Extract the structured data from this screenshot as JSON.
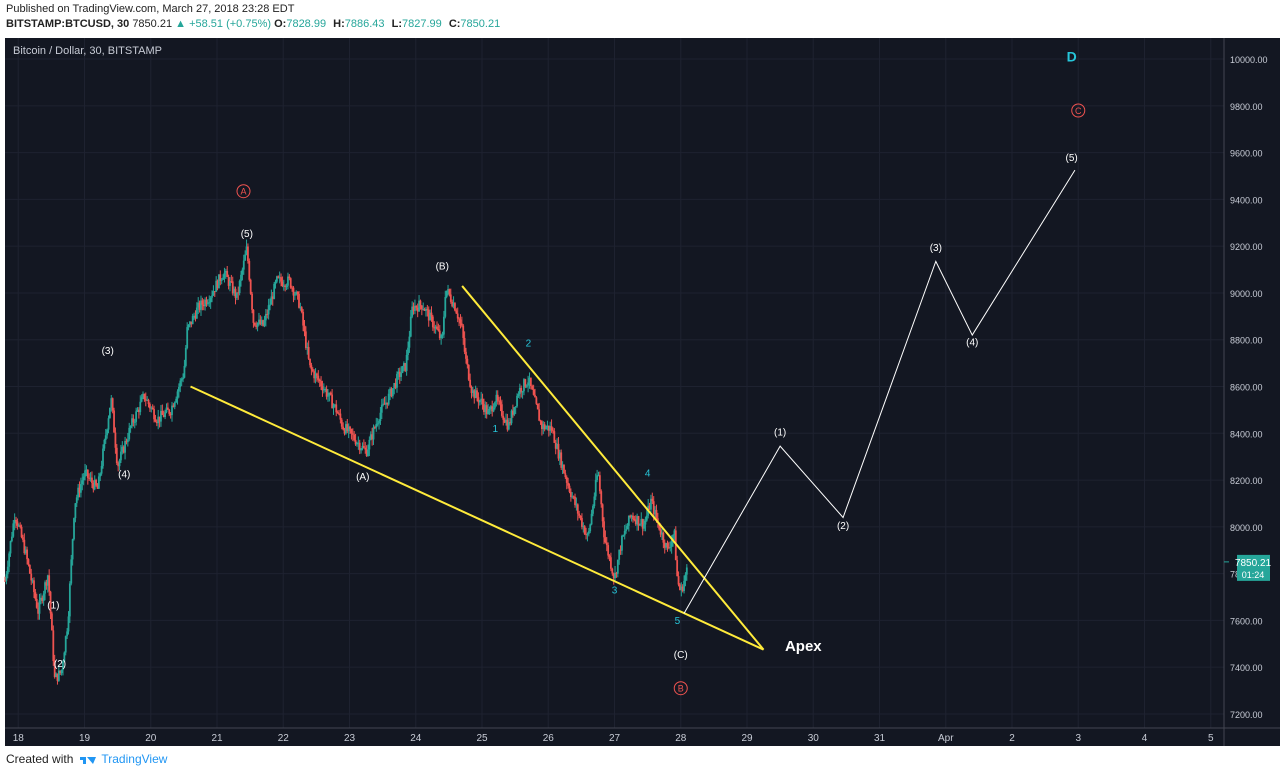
{
  "published": "Published on TradingView.com, March 27, 2018 23:28 EDT",
  "quote": {
    "symbol": "BITSTAMP:BTCUSD, 30",
    "last": "7850.21",
    "change": "▲ +58.51 (+0.75%)",
    "o_label": "O:",
    "o": "7828.99",
    "h_label": "H:",
    "h": "7886.43",
    "l_label": "L:",
    "l": "7827.99",
    "c_label": "C:",
    "c": "7850.21"
  },
  "chart_title": "Bitcoin / Dollar, 30, BITSTAMP",
  "footer": {
    "created_with": "Created with",
    "brand": "TradingView"
  },
  "price_tag": {
    "price": "7850.21",
    "countdown": "01:24"
  },
  "colors": {
    "background": "#131722",
    "up": "#26a69a",
    "down": "#ef5350",
    "trendline": "#ffeb3b",
    "projection": "#ffffff",
    "cyan_label": "#26c6da",
    "red_circle": "#ef5350"
  },
  "chart_data": {
    "type": "candlestick",
    "title": "Bitcoin / Dollar, 30, BITSTAMP",
    "x_ticks": [
      "18",
      "19",
      "20",
      "21",
      "22",
      "23",
      "24",
      "25",
      "26",
      "27",
      "28",
      "29",
      "30",
      "31",
      "Apr",
      "2",
      "3",
      "4",
      "5"
    ],
    "y_ticks": [
      "7200.00",
      "7400.00",
      "7600.00",
      "7800.00",
      "8000.00",
      "8200.00",
      "8400.00",
      "8600.00",
      "8800.00",
      "9000.00",
      "9200.00",
      "9400.00",
      "9600.00",
      "9800.00",
      "10000.00"
    ],
    "ylim": [
      7140,
      10090
    ],
    "xlim_days": [
      17.8,
      36.2
    ],
    "price_path": [
      [
        17.8,
        7770
      ],
      [
        17.95,
        8060
      ],
      [
        18.1,
        7900
      ],
      [
        18.3,
        7640
      ],
      [
        18.45,
        7800
      ],
      [
        18.55,
        7350
      ],
      [
        18.65,
        7380
      ],
      [
        18.75,
        7600
      ],
      [
        18.85,
        8100
      ],
      [
        19.0,
        8230
      ],
      [
        19.2,
        8160
      ],
      [
        19.4,
        8550
      ],
      [
        19.5,
        8260
      ],
      [
        19.7,
        8430
      ],
      [
        19.9,
        8560
      ],
      [
        20.1,
        8460
      ],
      [
        20.3,
        8500
      ],
      [
        20.5,
        8660
      ],
      [
        20.55,
        8840
      ],
      [
        20.7,
        8930
      ],
      [
        20.9,
        8990
      ],
      [
        21.1,
        9090
      ],
      [
        21.3,
        8980
      ],
      [
        21.45,
        9190
      ],
      [
        21.55,
        8880
      ],
      [
        21.7,
        8860
      ],
      [
        21.9,
        9050
      ],
      [
        22.1,
        9050
      ],
      [
        22.25,
        8950
      ],
      [
        22.4,
        8680
      ],
      [
        22.6,
        8600
      ],
      [
        22.8,
        8500
      ],
      [
        22.9,
        8430
      ],
      [
        23.1,
        8370
      ],
      [
        23.25,
        8320
      ],
      [
        23.45,
        8480
      ],
      [
        23.6,
        8560
      ],
      [
        23.75,
        8650
      ],
      [
        23.85,
        8690
      ],
      [
        23.95,
        8940
      ],
      [
        24.1,
        8950
      ],
      [
        24.3,
        8850
      ],
      [
        24.4,
        8790
      ],
      [
        24.45,
        9020
      ],
      [
        24.6,
        8940
      ],
      [
        24.7,
        8840
      ],
      [
        24.75,
        8720
      ],
      [
        24.85,
        8580
      ],
      [
        25.0,
        8530
      ],
      [
        25.1,
        8480
      ],
      [
        25.2,
        8550
      ],
      [
        25.4,
        8430
      ],
      [
        25.55,
        8580
      ],
      [
        25.7,
        8630
      ],
      [
        25.8,
        8530
      ],
      [
        25.9,
        8430
      ],
      [
        26.05,
        8420
      ],
      [
        26.15,
        8320
      ],
      [
        26.3,
        8180
      ],
      [
        26.45,
        8060
      ],
      [
        26.6,
        7950
      ],
      [
        26.75,
        8240
      ],
      [
        26.85,
        7950
      ],
      [
        27.0,
        7780
      ],
      [
        27.1,
        7930
      ],
      [
        27.25,
        8050
      ],
      [
        27.45,
        8010
      ],
      [
        27.55,
        8110
      ],
      [
        27.65,
        8020
      ],
      [
        27.8,
        7900
      ],
      [
        27.9,
        7980
      ],
      [
        27.95,
        7770
      ],
      [
        28.0,
        7720
      ],
      [
        28.1,
        7820
      ]
    ],
    "trendlines": [
      {
        "from": [
          20.6,
          8600
        ],
        "to": [
          29.25,
          7475
        ]
      },
      {
        "from": [
          24.7,
          9030
        ],
        "to": [
          29.25,
          7475
        ]
      }
    ],
    "projection": {
      "points": [
        [
          28.05,
          7630
        ],
        [
          29.5,
          8345
        ],
        [
          30.45,
          8040
        ],
        [
          31.85,
          9135
        ],
        [
          32.4,
          8820
        ],
        [
          33.95,
          9525
        ]
      ],
      "labels": [
        "(1)",
        "(2)",
        "(3)",
        "(4)",
        "(5)"
      ]
    },
    "annotations": [
      {
        "text": "(1)",
        "x": 18.53,
        "y": 7650,
        "color": "#ffffff"
      },
      {
        "text": "(2)",
        "x": 18.63,
        "y": 7400,
        "color": "#ffffff"
      },
      {
        "text": "(3)",
        "x": 19.35,
        "y": 8740,
        "color": "#ffffff"
      },
      {
        "text": "(4)",
        "x": 19.6,
        "y": 8210,
        "color": "#ffffff"
      },
      {
        "text": "(5)",
        "x": 21.45,
        "y": 9240,
        "color": "#ffffff"
      },
      {
        "text": "(A)",
        "x": 23.2,
        "y": 8200,
        "color": "#ffffff"
      },
      {
        "text": "(B)",
        "x": 24.4,
        "y": 9100,
        "color": "#ffffff"
      },
      {
        "text": "(C)",
        "x": 28.0,
        "y": 7440,
        "color": "#ffffff"
      },
      {
        "text": "1",
        "x": 25.2,
        "y": 8405,
        "color": "#26c6da"
      },
      {
        "text": "2",
        "x": 25.7,
        "y": 8770,
        "color": "#26c6da"
      },
      {
        "text": "3",
        "x": 27.0,
        "y": 7715,
        "color": "#26c6da"
      },
      {
        "text": "4",
        "x": 27.5,
        "y": 8215,
        "color": "#26c6da"
      },
      {
        "text": "5",
        "x": 27.95,
        "y": 7585,
        "color": "#26c6da"
      },
      {
        "text": "(1)",
        "x": 29.5,
        "y": 8390,
        "color": "#ffffff"
      },
      {
        "text": "(2)",
        "x": 30.45,
        "y": 7990,
        "color": "#ffffff"
      },
      {
        "text": "(3)",
        "x": 31.85,
        "y": 9180,
        "color": "#ffffff"
      },
      {
        "text": "(4)",
        "x": 32.4,
        "y": 8775,
        "color": "#ffffff"
      },
      {
        "text": "(5)",
        "x": 33.9,
        "y": 9565,
        "color": "#ffffff"
      },
      {
        "text": "Apex",
        "x": 29.85,
        "y": 7470,
        "color": "#ffffff",
        "bold": true
      }
    ],
    "circled": [
      {
        "text": "A",
        "x": 21.4,
        "y": 9435,
        "color": "#ef5350"
      },
      {
        "text": "B",
        "x": 28.0,
        "y": 7310,
        "color": "#ef5350"
      },
      {
        "text": "C",
        "x": 34.0,
        "y": 9780,
        "color": "#ef5350"
      }
    ],
    "big_labels": [
      {
        "text": "D",
        "x": 33.9,
        "y": 9990,
        "color": "#26c6da"
      }
    ]
  }
}
